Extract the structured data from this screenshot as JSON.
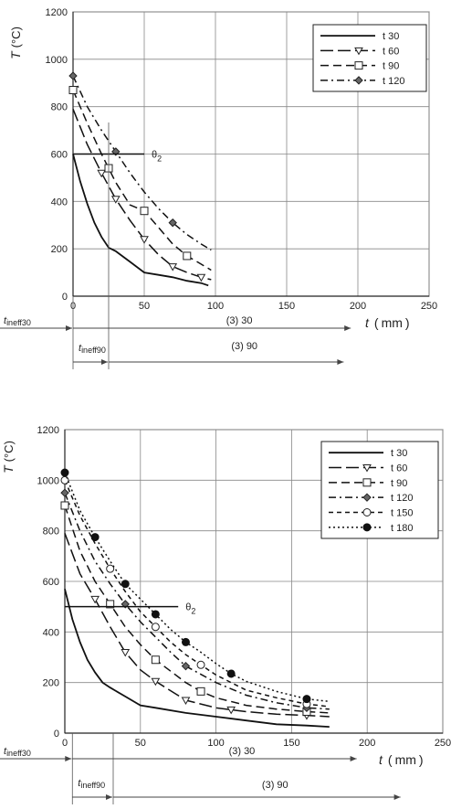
{
  "chart_data": [
    {
      "type": "line",
      "xlabel": "t",
      "xunit": "mm",
      "ylabel": "T",
      "yunit": "°C",
      "xlim": [
        0,
        250
      ],
      "ylim": [
        0,
        1200
      ],
      "xticks": [
        "0",
        "50",
        "100",
        "150",
        "200",
        "250"
      ],
      "yticks": [
        "0",
        "200",
        "400",
        "600",
        "800",
        "1000",
        "1200"
      ],
      "legend_position": "top-right",
      "series": [
        {
          "name": "t 30",
          "x": [
            0,
            5,
            10,
            15,
            20,
            25,
            30,
            40,
            50,
            60,
            70,
            80,
            90,
            95
          ],
          "y": [
            600,
            485,
            390,
            310,
            250,
            205,
            190,
            145,
            100,
            90,
            80,
            65,
            55,
            45
          ],
          "dash": "solid",
          "marker": "none"
        },
        {
          "name": "t 60",
          "x": [
            0,
            10,
            20,
            30,
            40,
            50,
            60,
            70,
            80,
            90,
            97
          ],
          "y": [
            790,
            640,
            520,
            410,
            320,
            240,
            175,
            125,
            100,
            80,
            70
          ],
          "dash": "longdash",
          "marker": "triangle",
          "marker_x": [
            20,
            30,
            50,
            70,
            90
          ]
        },
        {
          "name": "t 90",
          "x": [
            0,
            10,
            20,
            30,
            40,
            50,
            60,
            70,
            80,
            90,
            97
          ],
          "y": [
            870,
            730,
            600,
            480,
            385,
            360,
            290,
            220,
            170,
            135,
            110
          ],
          "dash": "dash",
          "marker": "square",
          "marker_x": [
            0,
            25,
            50,
            80
          ]
        },
        {
          "name": "t 120",
          "x": [
            0,
            10,
            20,
            30,
            40,
            50,
            60,
            70,
            80,
            90,
            97
          ],
          "y": [
            930,
            800,
            700,
            610,
            520,
            440,
            370,
            310,
            260,
            220,
            195
          ],
          "dash": "dashdot",
          "marker": "diamond",
          "marker_x": [
            0,
            30,
            70
          ]
        }
      ],
      "annotations": {
        "theta_label": "θ",
        "theta_sub": "2",
        "theta_value": 600,
        "theta_x_end": 50,
        "tineff_label": "t",
        "tineff_sub_a": "ineff30",
        "tineff_sub_b": "ineff90",
        "dim_30": "(3) 30",
        "dim_90": "(3) 90",
        "tineff30_value": 0,
        "tineff90_value": 25,
        "dim30_end": 195,
        "dim90_end": 190
      }
    },
    {
      "type": "line",
      "xlabel": "t",
      "xunit": "mm",
      "ylabel": "T",
      "yunit": "°C",
      "xlim": [
        0,
        250
      ],
      "ylim": [
        0,
        1200
      ],
      "xticks": [
        "0",
        "50",
        "100",
        "150",
        "200",
        "250"
      ],
      "yticks": [
        "0",
        "200",
        "400",
        "600",
        "800",
        "1000",
        "1200"
      ],
      "legend_position": "top-right",
      "series": [
        {
          "name": "t 30",
          "x": [
            0,
            5,
            10,
            15,
            20,
            25,
            30,
            40,
            50,
            60,
            80,
            100,
            120,
            140,
            160,
            175
          ],
          "y": [
            570,
            450,
            360,
            290,
            240,
            200,
            180,
            145,
            110,
            100,
            80,
            65,
            50,
            35,
            30,
            25
          ],
          "dash": "solid",
          "marker": "none"
        },
        {
          "name": "t 60",
          "x": [
            0,
            10,
            20,
            30,
            40,
            50,
            60,
            80,
            100,
            120,
            140,
            160,
            175
          ],
          "y": [
            790,
            630,
            530,
            420,
            320,
            250,
            205,
            130,
            100,
            85,
            75,
            70,
            65
          ],
          "dash": "longdash",
          "marker": "triangle",
          "marker_x": [
            20,
            40,
            60,
            80,
            110,
            160
          ]
        },
        {
          "name": "t 90",
          "x": [
            0,
            10,
            20,
            30,
            40,
            50,
            60,
            80,
            90,
            100,
            120,
            140,
            160,
            175
          ],
          "y": [
            900,
            720,
            600,
            510,
            420,
            350,
            290,
            200,
            165,
            140,
            110,
            95,
            85,
            80
          ],
          "dash": "dash",
          "marker": "square",
          "marker_x": [
            0,
            30,
            60,
            90,
            160
          ]
        },
        {
          "name": "t 120",
          "x": [
            0,
            10,
            20,
            30,
            40,
            50,
            60,
            70,
            80,
            100,
            120,
            140,
            160,
            175
          ],
          "y": [
            950,
            800,
            680,
            590,
            510,
            440,
            380,
            320,
            265,
            200,
            150,
            120,
            100,
            95
          ],
          "dash": "dashdot",
          "marker": "diamond",
          "marker_x": [
            0,
            40,
            80,
            160
          ]
        },
        {
          "name": "t 150",
          "x": [
            0,
            10,
            20,
            30,
            40,
            50,
            60,
            70,
            80,
            90,
            100,
            120,
            140,
            160,
            175
          ],
          "y": [
            1000,
            860,
            750,
            650,
            560,
            480,
            420,
            360,
            310,
            270,
            230,
            170,
            140,
            115,
            105
          ],
          "dash": "shortdash",
          "marker": "circle",
          "marker_x": [
            0,
            30,
            60,
            90,
            160
          ]
        },
        {
          "name": "t 180",
          "x": [
            0,
            10,
            20,
            30,
            40,
            50,
            60,
            70,
            80,
            90,
            100,
            110,
            120,
            140,
            160,
            175
          ],
          "y": [
            1030,
            880,
            775,
            680,
            590,
            530,
            470,
            410,
            360,
            320,
            275,
            235,
            205,
            165,
            135,
            125
          ],
          "dash": "dotted",
          "marker": "dot",
          "marker_x": [
            0,
            20,
            40,
            60,
            80,
            110,
            160
          ]
        }
      ],
      "annotations": {
        "theta_label": "θ",
        "theta_sub": "2",
        "theta_value": 500,
        "theta_x_end": 75,
        "tineff_label": "t",
        "tineff_sub_a": "ineff30",
        "tineff_sub_b": "ineff90",
        "dim_30": "(3) 30",
        "dim_90": "(3) 90",
        "tineff30_value": 5,
        "tineff90_value": 32,
        "dim30_end": 193,
        "dim90_end": 222
      }
    }
  ]
}
